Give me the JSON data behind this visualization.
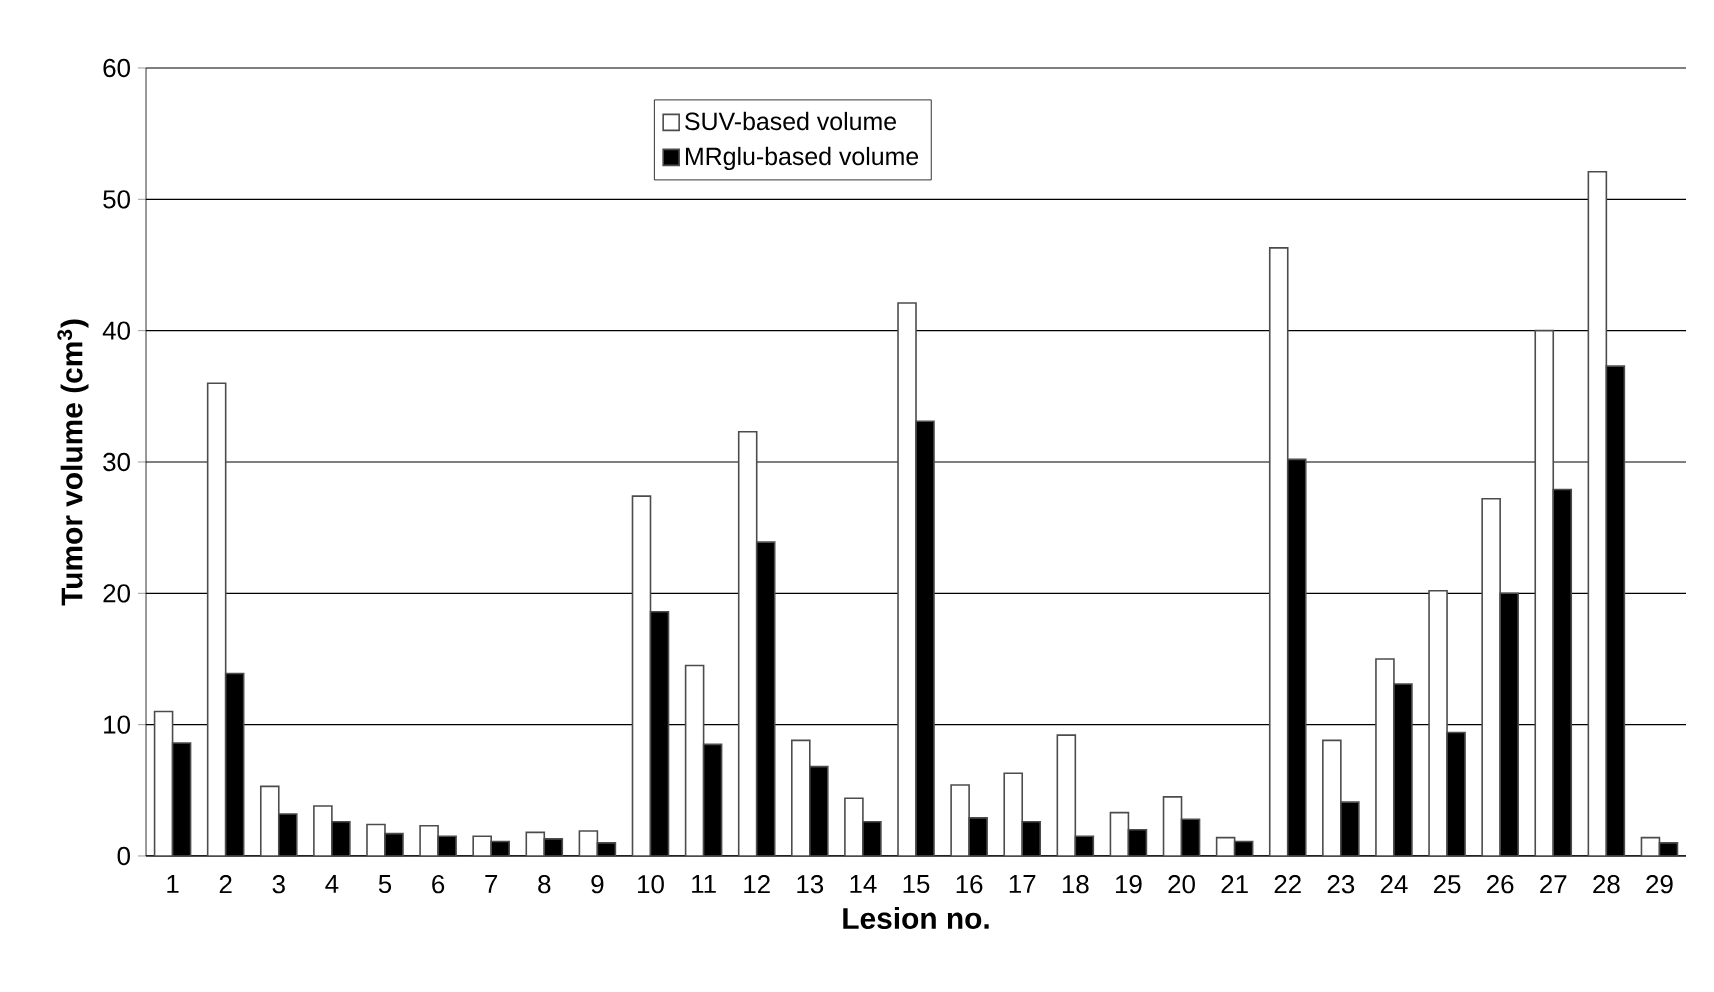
{
  "chart_data": {
    "type": "bar",
    "xlabel": "Lesion no.",
    "ylabel": "Tumor volume (cm$^{3}$)",
    "categories": [
      "1",
      "2",
      "3",
      "4",
      "5",
      "6",
      "7",
      "8",
      "9",
      "10",
      "11",
      "12",
      "13",
      "14",
      "15",
      "16",
      "17",
      "18",
      "19",
      "20",
      "21",
      "22",
      "23",
      "24",
      "25",
      "26",
      "27",
      "28",
      "29"
    ],
    "series": [
      {
        "name": "SUV-based volume",
        "color": "#ffffff",
        "values": [
          11,
          36,
          5.3,
          3.8,
          2.4,
          2.3,
          1.5,
          1.8,
          1.9,
          27.4,
          14.5,
          32.3,
          8.8,
          4.4,
          42.1,
          5.4,
          6.3,
          9.2,
          3.3,
          4.5,
          1.4,
          46.3,
          8.8,
          15,
          20.2,
          27.2,
          40,
          52.1,
          1.4
        ]
      },
      {
        "name": "MRglu-based volume",
        "color": "#000000",
        "values": [
          8.6,
          13.9,
          3.2,
          2.6,
          1.7,
          1.5,
          1.1,
          1.3,
          1.0,
          18.6,
          8.5,
          23.9,
          6.8,
          2.6,
          33.1,
          2.9,
          2.6,
          1.5,
          2.0,
          2.8,
          1.1,
          30.2,
          4.1,
          13.1,
          9.4,
          20,
          27.9,
          37.3,
          1.0
        ]
      }
    ],
    "ylim": [
      0,
      60
    ],
    "yticks": [
      0,
      10,
      20,
      30,
      40,
      50,
      60
    ],
    "grid": "y",
    "legend": "top"
  }
}
